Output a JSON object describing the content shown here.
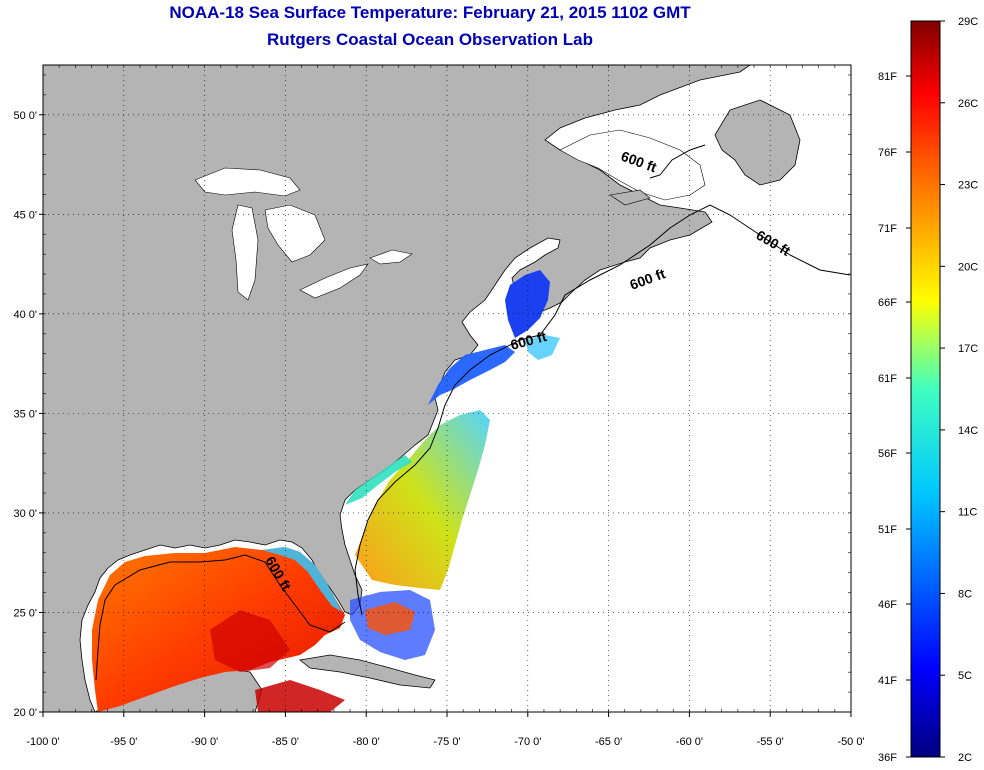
{
  "header": {
    "title": "NOAA-18 Sea Surface Temperature:  February 21, 2015 1102 GMT",
    "subtitle": "Rutgers Coastal Ocean Observation Lab"
  },
  "map": {
    "lon_range": [
      -100,
      -50
    ],
    "lat_range": [
      20,
      52.5
    ],
    "grid": true,
    "land_color": "#b4b4b4",
    "no_data_color": "#ffffff",
    "lat_tick_labels": [
      {
        "value": 20,
        "label": "20 0'"
      },
      {
        "value": 25,
        "label": "25 0'"
      },
      {
        "value": 30,
        "label": "30 0'"
      },
      {
        "value": 35,
        "label": "35 0'"
      },
      {
        "value": 40,
        "label": "40 0'"
      },
      {
        "value": 45,
        "label": "45 0'"
      },
      {
        "value": 50,
        "label": "50 0'"
      }
    ],
    "lon_tick_labels": [
      {
        "value": -100,
        "label": "-100 0'"
      },
      {
        "value": -95,
        "label": "-95 0'"
      },
      {
        "value": -90,
        "label": "-90 0'"
      },
      {
        "value": -85,
        "label": "-85 0'"
      },
      {
        "value": -80,
        "label": "-80 0'"
      },
      {
        "value": -75,
        "label": "-75 0'"
      },
      {
        "value": -70,
        "label": "-70 0'"
      },
      {
        "value": -65,
        "label": "-65 0'"
      },
      {
        "value": -60,
        "label": "-60 0'"
      },
      {
        "value": -55,
        "label": "-55 0'"
      },
      {
        "value": -50,
        "label": "-50 0'"
      }
    ],
    "contour_labels": [
      "600 ft",
      "600 ft",
      "600 ft",
      "600 ft",
      "600 ft"
    ]
  },
  "colorbar": {
    "celsius_labels": [
      "29C",
      "26C",
      "23C",
      "20C",
      "17C",
      "14C",
      "11C",
      "8C",
      "5C",
      "2C"
    ],
    "fahrenheit_labels": [
      "81F",
      "76F",
      "71F",
      "66F",
      "61F",
      "56F",
      "51F",
      "46F",
      "41F",
      "36F"
    ],
    "colors": [
      "#800000",
      "#ff0000",
      "#ff8000",
      "#ffff00",
      "#80ff80",
      "#00ffff",
      "#0080ff",
      "#0000ff",
      "#000080"
    ]
  }
}
